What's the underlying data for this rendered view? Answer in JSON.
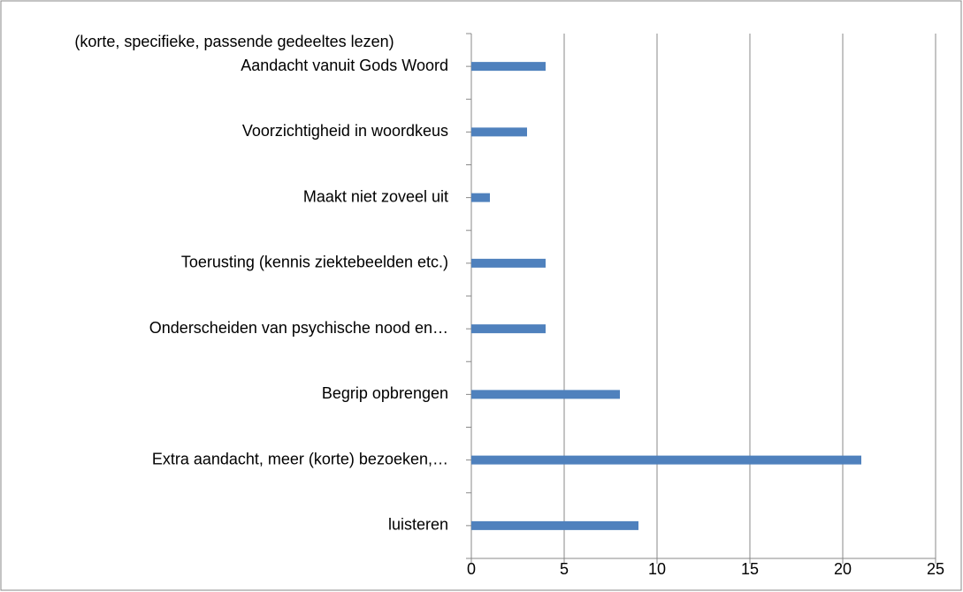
{
  "chart_data": {
    "type": "hbar",
    "categories": [
      "luisteren",
      "Extra aandacht, meer (korte) bezoeken,…",
      "Begrip opbrengen",
      "Onderscheiden van psychische nood en…",
      "Toerusting (kennis ziektebeelden etc.)",
      "Maakt niet zoveel uit",
      "Voorzichtigheid in woordkeus",
      "Aandacht vanuit Gods Woord"
    ],
    "annotation": "(korte, specifieke, passende gedeeltes lezen)",
    "values": [
      9,
      21,
      8,
      4,
      4,
      1,
      3,
      4
    ],
    "color": "#4f81bd",
    "xlim": [
      0,
      25
    ],
    "xticks": [
      0,
      5,
      10,
      15,
      20,
      25
    ],
    "grid": true
  }
}
